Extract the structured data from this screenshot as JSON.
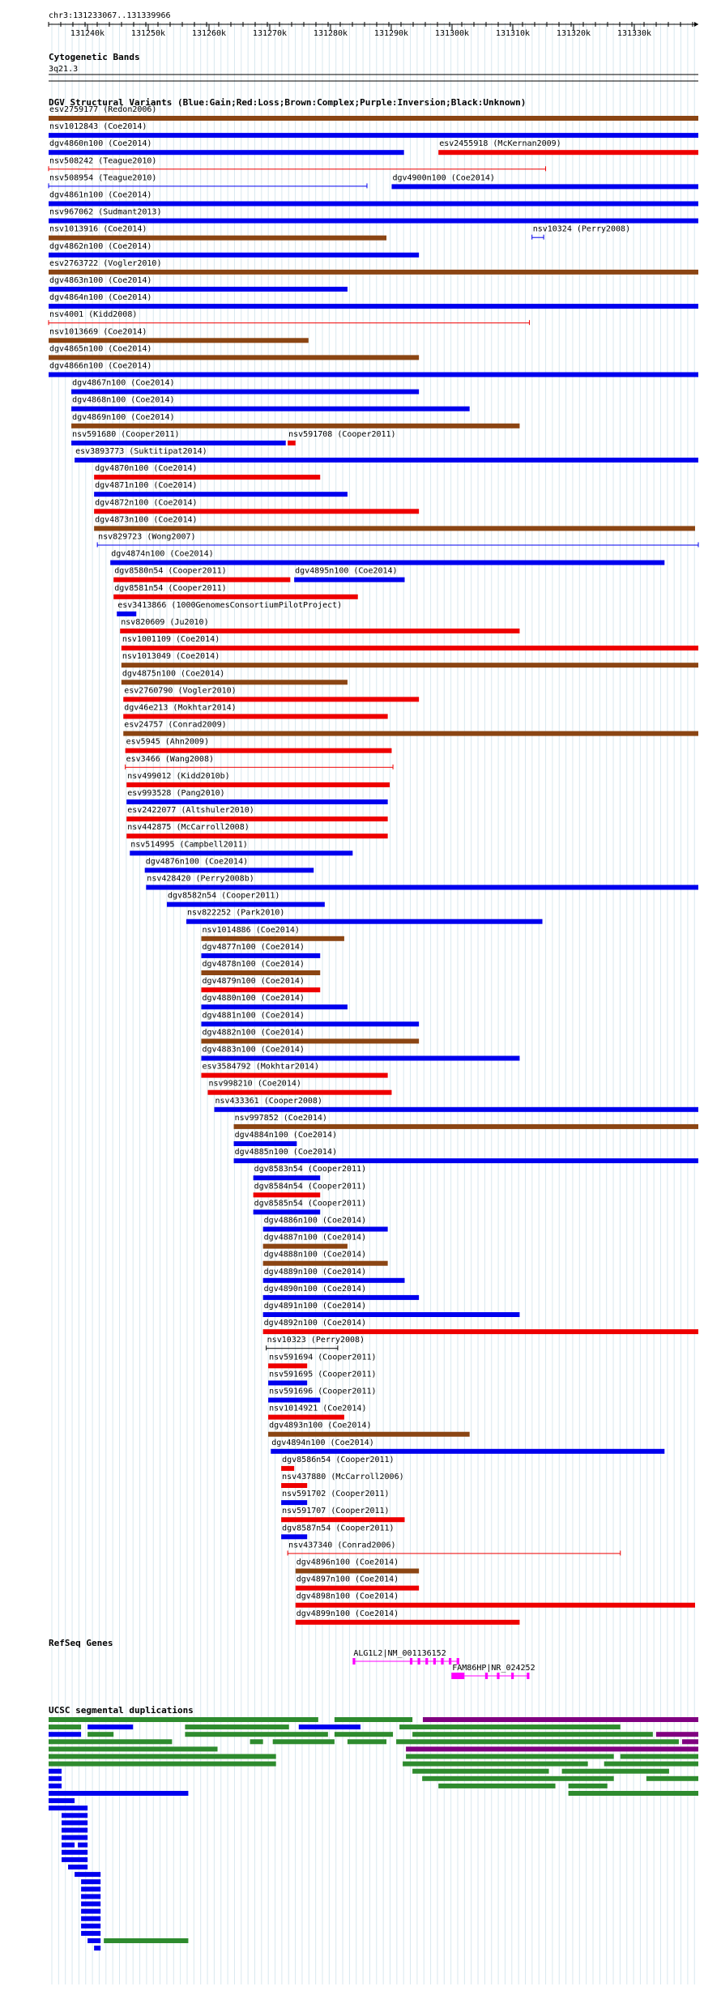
{
  "position": "chr3:131233067..131339966",
  "ruler": {
    "ticks": [
      "131240k",
      "131250k",
      "131260k",
      "131270k",
      "131280k",
      "131290k",
      "131300k",
      "131310k",
      "131320k",
      "131330k"
    ]
  },
  "cytoband": {
    "title": "Cytogenetic Bands",
    "band": "3q21.3"
  },
  "dgv": {
    "title": "DGV Structural Variants (Blue:Gain;Red:Loss;Brown:Complex;Purple:Inversion;Black:Unknown)",
    "colors": {
      "b": "#0000ee",
      "r": "#ee0000",
      "n": "#8b4513",
      "p": "#800080",
      "k": "#000000"
    },
    "rows": [
      [
        [
          "esv2759177 (Redon2006)",
          0.0,
          1.0,
          "n",
          0
        ]
      ],
      [
        [
          "nsv1012843 (Coe2014)",
          0.0,
          1.0,
          "b",
          0
        ]
      ],
      [
        [
          "dgv4860n100 (Coe2014)",
          0.0,
          0.547,
          "b",
          0
        ],
        [
          "esv2455918 (McKernan2009)",
          0.6,
          1.0,
          "r",
          0
        ]
      ],
      [
        [
          "nsv508242 (Teague2010)",
          0.0,
          0.765,
          "r",
          1
        ]
      ],
      [
        [
          "nsv508954 (Teague2010)",
          0.0,
          0.49,
          "b",
          1
        ],
        [
          "dgv4900n100 (Coe2014)",
          0.528,
          1.0,
          "b",
          0
        ]
      ],
      [
        [
          "dgv4861n100 (Coe2014)",
          0.0,
          1.0,
          "b",
          0
        ]
      ],
      [
        [
          "nsv967062 (Sudmant2013)",
          0.0,
          1.0,
          "b",
          0
        ]
      ],
      [
        [
          "nsv1013916 (Coe2014)",
          0.0,
          0.52,
          "n",
          0
        ],
        [
          "nsv10324 (Perry2008)",
          0.744,
          0.762,
          "b",
          1
        ]
      ],
      [
        [
          "dgv4862n100 (Coe2014)",
          0.0,
          0.57,
          "b",
          0
        ]
      ],
      [
        [
          "esv2763722 (Vogler2010)",
          0.0,
          1.0,
          "n",
          0
        ]
      ],
      [
        [
          "dgv4863n100 (Coe2014)",
          0.0,
          0.46,
          "b",
          0
        ]
      ],
      [
        [
          "dgv4864n100 (Coe2014)",
          0.0,
          1.0,
          "b",
          0
        ]
      ],
      [
        [
          "nsv4001 (Kidd2008)",
          0.0,
          0.74,
          "r",
          1
        ]
      ],
      [
        [
          "nsv1013669 (Coe2014)",
          0.0,
          0.4,
          "n",
          0
        ]
      ],
      [
        [
          "dgv4865n100 (Coe2014)",
          0.0,
          0.57,
          "n",
          0
        ]
      ],
      [
        [
          "dgv4866n100 (Coe2014)",
          0.0,
          1.0,
          "b",
          0
        ]
      ],
      [
        [
          "dgv4867n100 (Coe2014)",
          0.035,
          0.57,
          "b",
          0
        ]
      ],
      [
        [
          "dgv4868n100 (Coe2014)",
          0.035,
          0.648,
          "b",
          0
        ]
      ],
      [
        [
          "dgv4869n100 (Coe2014)",
          0.035,
          0.725,
          "n",
          0
        ]
      ],
      [
        [
          "nsv591680 (Cooper2011)",
          0.035,
          0.365,
          "b",
          0
        ],
        [
          "nsv591708 (Cooper2011)",
          0.368,
          0.38,
          "r",
          0
        ]
      ],
      [
        [
          "esv3893773 (Suktitipat2014)",
          0.04,
          1.0,
          "b",
          0
        ]
      ],
      [
        [
          "dgv4870n100 (Coe2014)",
          0.07,
          0.418,
          "r",
          0
        ]
      ],
      [
        [
          "dgv4871n100 (Coe2014)",
          0.07,
          0.46,
          "b",
          0
        ]
      ],
      [
        [
          "dgv4872n100 (Coe2014)",
          0.07,
          0.57,
          "r",
          0
        ]
      ],
      [
        [
          "dgv4873n100 (Coe2014)",
          0.07,
          0.995,
          "n",
          0
        ]
      ],
      [
        [
          "nsv829723 (Wong2007)",
          0.075,
          1.0,
          "b",
          1
        ]
      ],
      [
        [
          "dgv4874n100 (Coe2014)",
          0.095,
          0.948,
          "b",
          0
        ]
      ],
      [
        [
          "dgv8580n54 (Cooper2011)",
          0.1,
          0.372,
          "r",
          0
        ],
        [
          "dgv4895n100 (Coe2014)",
          0.378,
          0.548,
          "b",
          0
        ]
      ],
      [
        [
          "dgv8581n54 (Cooper2011)",
          0.1,
          0.476,
          "r",
          0
        ]
      ],
      [
        [
          "esv3413866 (1000GenomesConsortiumPilotProject)",
          0.105,
          0.135,
          "b",
          0
        ]
      ],
      [
        [
          "nsv820609 (Ju2010)",
          0.11,
          0.725,
          "r",
          0
        ]
      ],
      [
        [
          "nsv1001109 (Coe2014)",
          0.112,
          1.0,
          "r",
          0
        ]
      ],
      [
        [
          "nsv1013049 (Coe2014)",
          0.112,
          1.0,
          "n",
          0
        ]
      ],
      [
        [
          "dgv4875n100 (Coe2014)",
          0.112,
          0.46,
          "n",
          0
        ]
      ],
      [
        [
          "esv2760790 (Vogler2010)",
          0.115,
          0.57,
          "r",
          0
        ]
      ],
      [
        [
          "dgv46e213 (Mokhtar2014)",
          0.115,
          0.522,
          "r",
          0
        ]
      ],
      [
        [
          "esv24757 (Conrad2009)",
          0.115,
          1.0,
          "n",
          0
        ]
      ],
      [
        [
          "esv5945 (Ahn2009)",
          0.118,
          0.528,
          "r",
          0
        ]
      ],
      [
        [
          "esv3466 (Wang2008)",
          0.118,
          0.53,
          "r",
          1
        ]
      ],
      [
        [
          "nsv499012 (Kidd2010b)",
          0.12,
          0.525,
          "r",
          0
        ]
      ],
      [
        [
          "esv993528 (Pang2010)",
          0.12,
          0.522,
          "b",
          0
        ]
      ],
      [
        [
          "esv2422077 (Altshuler2010)",
          0.12,
          0.522,
          "r",
          0
        ]
      ],
      [
        [
          "nsv442875 (McCarroll2008)",
          0.12,
          0.522,
          "r",
          0
        ]
      ],
      [
        [
          "nsv514995 (Campbell2011)",
          0.125,
          0.468,
          "b",
          0
        ]
      ],
      [
        [
          "dgv4876n100 (Coe2014)",
          0.148,
          0.408,
          "b",
          0
        ]
      ],
      [
        [
          "nsv428420 (Perry2008b)",
          0.15,
          1.0,
          "b",
          0
        ]
      ],
      [
        [
          "dgv8582n54 (Cooper2011)",
          0.182,
          0.425,
          "b",
          0
        ]
      ],
      [
        [
          "nsv822252 (Park2010)",
          0.212,
          0.76,
          "b",
          0
        ]
      ],
      [
        [
          "nsv1014886 (Coe2014)",
          0.235,
          0.455,
          "n",
          0
        ]
      ],
      [
        [
          "dgv4877n100 (Coe2014)",
          0.235,
          0.418,
          "b",
          0
        ]
      ],
      [
        [
          "dgv4878n100 (Coe2014)",
          0.235,
          0.418,
          "n",
          0
        ]
      ],
      [
        [
          "dgv4879n100 (Coe2014)",
          0.235,
          0.418,
          "r",
          0
        ]
      ],
      [
        [
          "dgv4880n100 (Coe2014)",
          0.235,
          0.46,
          "b",
          0
        ]
      ],
      [
        [
          "dgv4881n100 (Coe2014)",
          0.235,
          0.57,
          "b",
          0
        ]
      ],
      [
        [
          "dgv4882n100 (Coe2014)",
          0.235,
          0.57,
          "n",
          0
        ]
      ],
      [
        [
          "dgv4883n100 (Coe2014)",
          0.235,
          0.725,
          "b",
          0
        ]
      ],
      [
        [
          "esv3584792 (Mokhtar2014)",
          0.235,
          0.522,
          "r",
          0
        ]
      ],
      [
        [
          "nsv998210 (Coe2014)",
          0.245,
          0.528,
          "r",
          0
        ]
      ],
      [
        [
          "nsv433361 (Cooper2008)",
          0.255,
          1.0,
          "b",
          0
        ]
      ],
      [
        [
          "nsv997852 (Coe2014)",
          0.285,
          1.0,
          "n",
          0
        ]
      ],
      [
        [
          "dgv4884n100 (Coe2014)",
          0.285,
          0.382,
          "b",
          0
        ]
      ],
      [
        [
          "dgv4885n100 (Coe2014)",
          0.285,
          1.0,
          "b",
          0
        ]
      ],
      [
        [
          "dgv8583n54 (Cooper2011)",
          0.315,
          0.418,
          "b",
          0
        ]
      ],
      [
        [
          "dgv8584n54 (Cooper2011)",
          0.315,
          0.418,
          "r",
          0
        ]
      ],
      [
        [
          "dgv8585n54 (Cooper2011)",
          0.315,
          0.418,
          "b",
          0
        ]
      ],
      [
        [
          "dgv4886n100 (Coe2014)",
          0.33,
          0.522,
          "b",
          0
        ]
      ],
      [
        [
          "dgv4887n100 (Coe2014)",
          0.33,
          0.46,
          "n",
          0
        ]
      ],
      [
        [
          "dgv4888n100 (Coe2014)",
          0.33,
          0.522,
          "n",
          0
        ]
      ],
      [
        [
          "dgv4889n100 (Coe2014)",
          0.33,
          0.548,
          "b",
          0
        ]
      ],
      [
        [
          "dgv4890n100 (Coe2014)",
          0.33,
          0.57,
          "b",
          0
        ]
      ],
      [
        [
          "dgv4891n100 (Coe2014)",
          0.33,
          0.725,
          "b",
          0
        ]
      ],
      [
        [
          "dgv4892n100 (Coe2014)",
          0.33,
          1.0,
          "r",
          0
        ]
      ],
      [
        [
          "nsv10323 (Perry2008)",
          0.335,
          0.445,
          "k",
          1
        ]
      ],
      [
        [
          "nsv591694 (Cooper2011)",
          0.338,
          0.398,
          "r",
          0
        ]
      ],
      [
        [
          "nsv591695 (Cooper2011)",
          0.338,
          0.398,
          "b",
          0
        ]
      ],
      [
        [
          "nsv591696 (Cooper2011)",
          0.338,
          0.418,
          "b",
          0
        ]
      ],
      [
        [
          "nsv1014921 (Coe2014)",
          0.338,
          0.455,
          "r",
          0
        ]
      ],
      [
        [
          "dgv4893n100 (Coe2014)",
          0.338,
          0.648,
          "n",
          0
        ]
      ],
      [
        [
          "dgv4894n100 (Coe2014)",
          0.342,
          0.948,
          "b",
          0
        ]
      ],
      [
        [
          "dgv8586n54 (Cooper2011)",
          0.358,
          0.378,
          "r",
          0
        ]
      ],
      [
        [
          "nsv437880 (McCarroll2006)",
          0.358,
          0.398,
          "r",
          0
        ]
      ],
      [
        [
          "nsv591702 (Cooper2011)",
          0.358,
          0.398,
          "b",
          0
        ]
      ],
      [
        [
          "nsv591707 (Cooper2011)",
          0.358,
          0.548,
          "r",
          0
        ]
      ],
      [
        [
          "dgv8587n54 (Cooper2011)",
          0.358,
          0.398,
          "b",
          0
        ]
      ],
      [
        [
          "nsv437340 (Conrad2006)",
          0.368,
          0.88,
          "r",
          1
        ]
      ],
      [
        [
          "dgv4896n100 (Coe2014)",
          0.38,
          0.57,
          "n",
          0
        ]
      ],
      [
        [
          "dgv4897n100 (Coe2014)",
          0.38,
          0.57,
          "r",
          0
        ]
      ],
      [
        [
          "dgv4898n100 (Coe2014)",
          0.38,
          0.995,
          "r",
          0
        ]
      ],
      [
        [
          "dgv4899n100 (Coe2014)",
          0.38,
          0.725,
          "r",
          0
        ]
      ]
    ]
  },
  "refseq": {
    "title": "RefSeq Genes",
    "genes": [
      {
        "label": "ALG1L2|NM_001136152",
        "start": 0.468,
        "end": 0.632,
        "exons": [
          [
            0.468,
            0.472
          ],
          [
            0.556,
            0.56
          ],
          [
            0.568,
            0.572
          ],
          [
            0.58,
            0.584
          ],
          [
            0.592,
            0.596
          ],
          [
            0.604,
            0.608
          ],
          [
            0.616,
            0.62
          ],
          [
            0.628,
            0.632
          ]
        ],
        "color": "#ff00ff",
        "row": 0
      },
      {
        "label": "FAM86HP|NR_024252",
        "start": 0.62,
        "end": 0.74,
        "exons": [
          [
            0.62,
            0.64
          ],
          [
            0.672,
            0.676
          ],
          [
            0.69,
            0.694
          ],
          [
            0.712,
            0.716
          ],
          [
            0.736,
            0.74
          ]
        ],
        "color": "#ff00ff",
        "row": 1
      }
    ]
  },
  "segdups": {
    "title": "UCSC segmental duplications",
    "colors": {
      "g": "#2e8b2e",
      "p": "#800080",
      "b": "#0000ee"
    },
    "rows": [
      [
        [
          0.0,
          0.415,
          "g"
        ],
        [
          0.44,
          0.56,
          "g"
        ],
        [
          0.576,
          1.0,
          "p"
        ]
      ],
      [
        [
          0.0,
          0.05,
          "g"
        ],
        [
          0.06,
          0.13,
          "b"
        ],
        [
          0.21,
          0.37,
          "g"
        ],
        [
          0.385,
          0.48,
          "b"
        ],
        [
          0.54,
          0.88,
          "g"
        ]
      ],
      [
        [
          0.0,
          0.05,
          "b"
        ],
        [
          0.06,
          0.1,
          "g"
        ],
        [
          0.21,
          0.43,
          "g"
        ],
        [
          0.44,
          0.53,
          "g"
        ],
        [
          0.56,
          0.93,
          "g"
        ],
        [
          0.935,
          1.0,
          "p"
        ]
      ],
      [
        [
          0.0,
          0.19,
          "g"
        ],
        [
          0.31,
          0.33,
          "g"
        ],
        [
          0.345,
          0.44,
          "g"
        ],
        [
          0.46,
          0.52,
          "g"
        ],
        [
          0.535,
          0.97,
          "g"
        ],
        [
          0.975,
          1.0,
          "p"
        ]
      ],
      [
        [
          0.0,
          0.26,
          "g"
        ],
        [
          0.55,
          1.0,
          "p"
        ]
      ],
      [
        [
          0.0,
          0.35,
          "g"
        ],
        [
          0.55,
          0.87,
          "g"
        ],
        [
          0.88,
          1.0,
          "g"
        ]
      ],
      [
        [
          0.0,
          0.35,
          "g"
        ],
        [
          0.545,
          0.83,
          "g"
        ],
        [
          0.855,
          1.0,
          "g"
        ]
      ],
      [
        [
          0.0,
          0.02,
          "b"
        ],
        [
          0.56,
          0.77,
          "g"
        ],
        [
          0.79,
          0.955,
          "g"
        ]
      ],
      [
        [
          0.0,
          0.02,
          "b"
        ],
        [
          0.575,
          0.87,
          "g"
        ],
        [
          0.92,
          1.0,
          "g"
        ]
      ],
      [
        [
          0.0,
          0.02,
          "b"
        ],
        [
          0.6,
          0.78,
          "g"
        ],
        [
          0.8,
          0.86,
          "g"
        ]
      ],
      [
        [
          0.0,
          0.215,
          "b"
        ],
        [
          0.8,
          1.0,
          "g"
        ]
      ],
      [
        [
          0.0,
          0.04,
          "b"
        ]
      ],
      [
        [
          0.0,
          0.06,
          "b"
        ]
      ],
      [
        [
          0.02,
          0.06,
          "b"
        ]
      ],
      [
        [
          0.02,
          0.06,
          "b"
        ]
      ],
      [
        [
          0.02,
          0.06,
          "b"
        ]
      ],
      [
        [
          0.02,
          0.06,
          "b"
        ]
      ],
      [
        [
          0.02,
          0.04,
          "b"
        ],
        [
          0.045,
          0.06,
          "b"
        ]
      ],
      [
        [
          0.02,
          0.06,
          "b"
        ]
      ],
      [
        [
          0.02,
          0.06,
          "b"
        ]
      ],
      [
        [
          0.03,
          0.06,
          "b"
        ]
      ],
      [
        [
          0.04,
          0.08,
          "b"
        ]
      ],
      [
        [
          0.05,
          0.08,
          "b"
        ]
      ],
      [
        [
          0.05,
          0.08,
          "b"
        ]
      ],
      [
        [
          0.05,
          0.08,
          "b"
        ]
      ],
      [
        [
          0.05,
          0.08,
          "b"
        ]
      ],
      [
        [
          0.05,
          0.08,
          "b"
        ]
      ],
      [
        [
          0.05,
          0.08,
          "b"
        ]
      ],
      [
        [
          0.05,
          0.08,
          "b"
        ]
      ],
      [
        [
          0.05,
          0.08,
          "b"
        ]
      ],
      [
        [
          0.06,
          0.08,
          "b"
        ],
        [
          0.085,
          0.215,
          "g"
        ]
      ],
      [
        [
          0.07,
          0.08,
          "b"
        ]
      ]
    ]
  }
}
